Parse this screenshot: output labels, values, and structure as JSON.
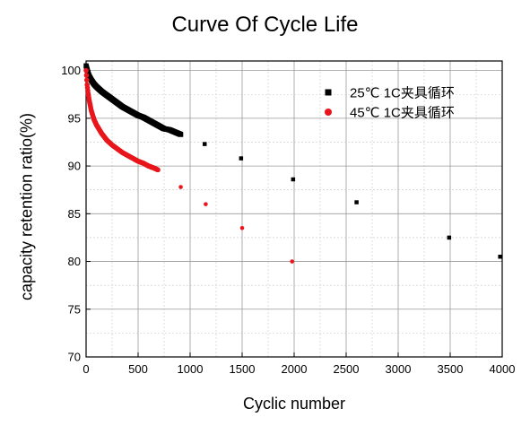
{
  "chart_data": {
    "type": "scatter",
    "title": "Curve Of Cycle Life",
    "xlabel": "Cyclic number",
    "ylabel": "capacity retention ratio(%)",
    "xlim": [
      0,
      4000
    ],
    "ylim": [
      70,
      101
    ],
    "xticks": [
      0,
      500,
      1000,
      1500,
      2000,
      2500,
      3000,
      3500,
      4000
    ],
    "yticks": [
      70,
      75,
      80,
      85,
      90,
      95,
      100
    ],
    "grid": true,
    "legend_position": "top-right",
    "series": [
      {
        "name": "25℃ 1C夹具循环",
        "color": "#000000",
        "marker": "square",
        "x": [
          0,
          10,
          20,
          30,
          50,
          75,
          100,
          150,
          200,
          250,
          300,
          350,
          400,
          450,
          500,
          550,
          600,
          650,
          700,
          750,
          800,
          910,
          1140,
          1490,
          1990,
          2600,
          3490,
          3980
        ],
        "y": [
          100.5,
          100.1,
          99.7,
          99.4,
          99.0,
          98.6,
          98.3,
          97.8,
          97.4,
          97.0,
          96.6,
          96.2,
          95.9,
          95.6,
          95.3,
          95.1,
          94.8,
          94.5,
          94.2,
          93.9,
          93.8,
          93.3,
          92.3,
          90.8,
          88.6,
          86.2,
          82.5,
          80.5
        ]
      },
      {
        "name": "45℃ 1C夹具循环",
        "color": "#e8161c",
        "marker": "circle",
        "x": [
          0,
          10,
          20,
          30,
          50,
          75,
          100,
          150,
          200,
          250,
          300,
          350,
          400,
          450,
          500,
          550,
          600,
          650,
          690,
          910,
          1150,
          1500,
          1980
        ],
        "y": [
          100.0,
          98.5,
          97.6,
          96.9,
          95.8,
          94.9,
          94.3,
          93.4,
          92.7,
          92.2,
          91.8,
          91.4,
          91.1,
          90.8,
          90.5,
          90.3,
          90.0,
          89.8,
          89.6,
          87.8,
          86.0,
          83.5,
          80.0
        ]
      }
    ]
  }
}
